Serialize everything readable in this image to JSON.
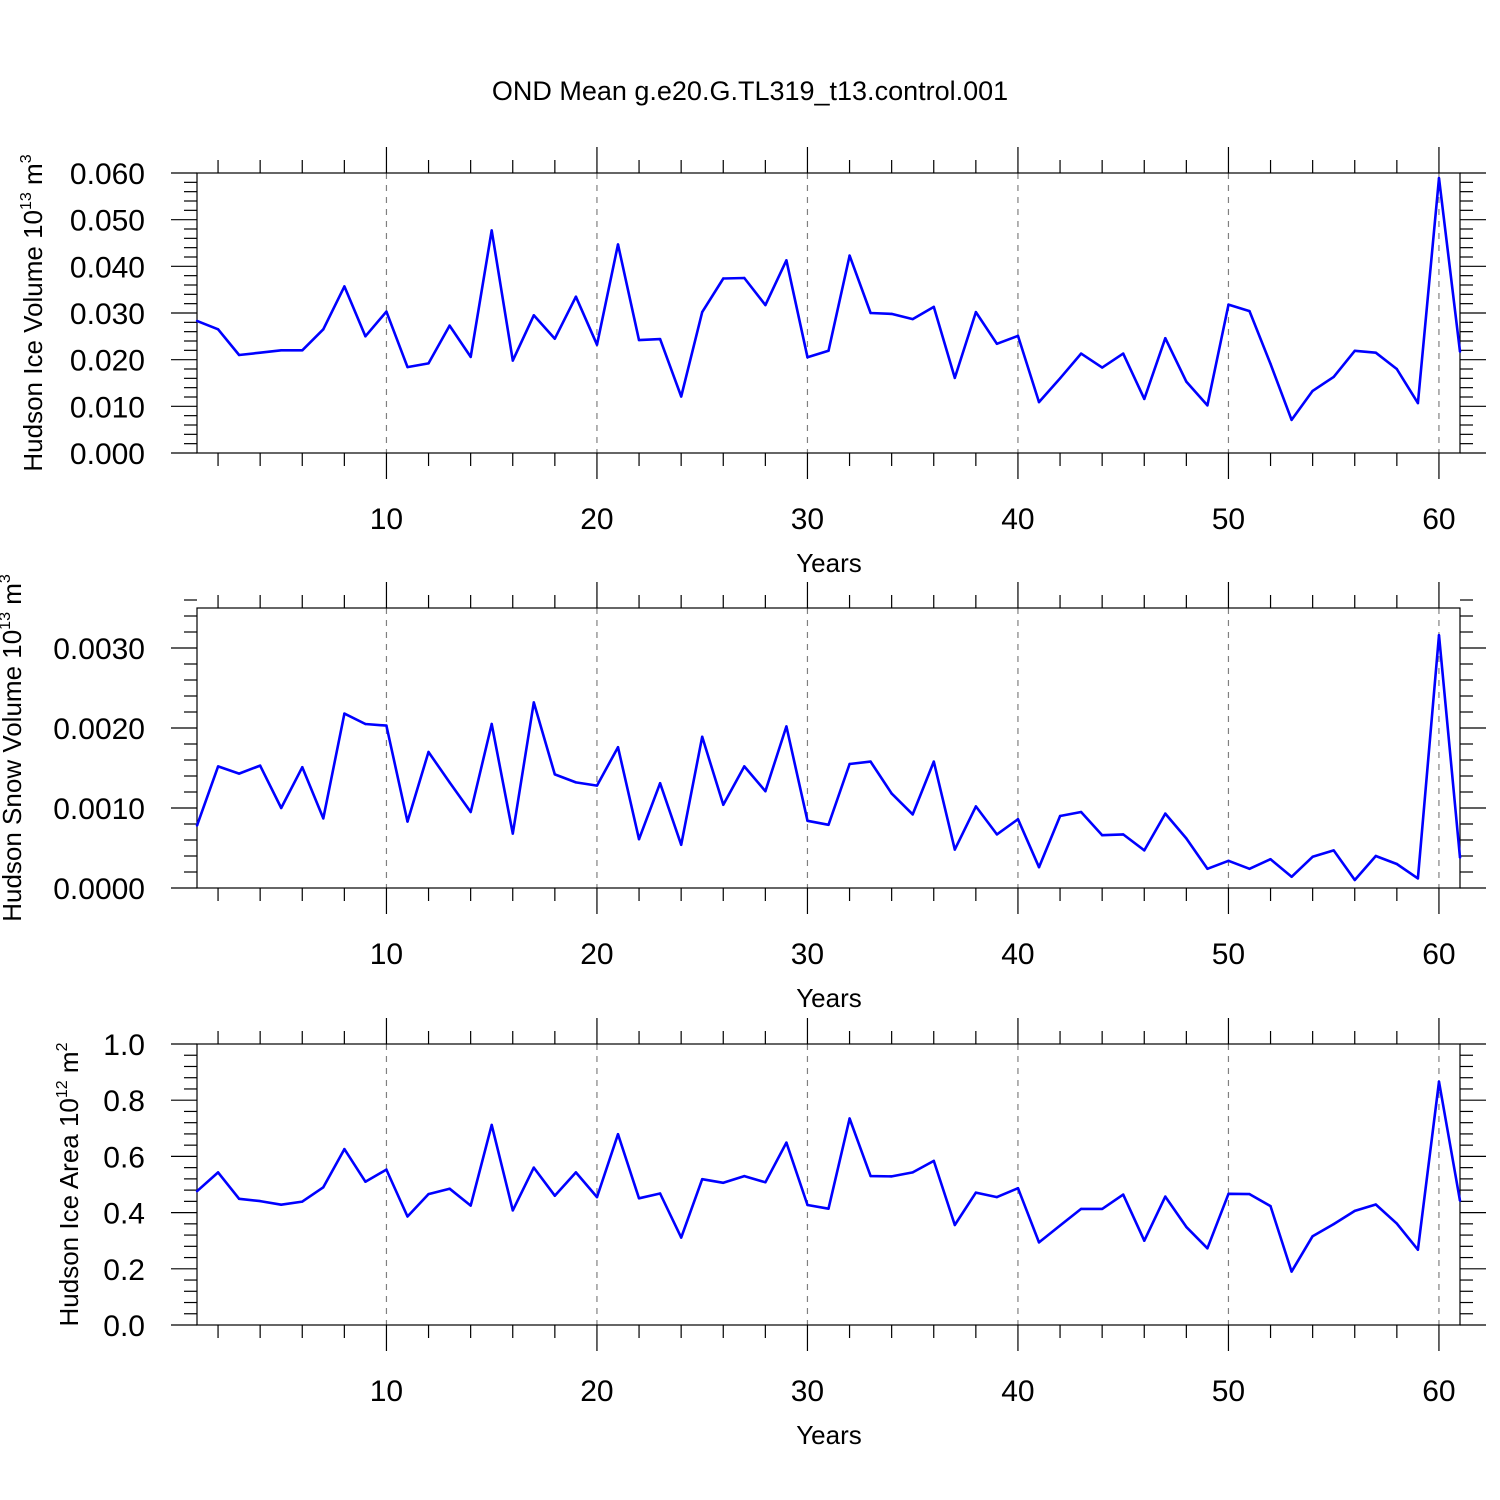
{
  "title": "OND Mean g.e20.G.TL319_t13.control.001",
  "colors": {
    "line": "#0000ff",
    "axis": "#000000",
    "grid": "#808080"
  },
  "chart_data": [
    {
      "type": "line",
      "xlabel": "Years",
      "ylabel": {
        "text": "Hudson Ice Volume 10",
        "exp": "13",
        "unit": " m",
        "unit_exp": "3"
      },
      "xlim": [
        1,
        61
      ],
      "ylim": [
        0,
        0.06
      ],
      "x_ticks": [
        10,
        20,
        30,
        40,
        50,
        60
      ],
      "x_tick_labels": [
        "10",
        "20",
        "30",
        "40",
        "50",
        "60"
      ],
      "y_ticks": [
        0,
        0.01,
        0.02,
        0.03,
        0.04,
        0.05,
        0.06
      ],
      "y_tick_labels": [
        "0.000",
        "0.010",
        "0.020",
        "0.030",
        "0.040",
        "0.050",
        "0.060"
      ],
      "grid": "vertical-dashed",
      "x": [
        1,
        2,
        3,
        4,
        5,
        6,
        7,
        8,
        9,
        10,
        11,
        12,
        13,
        14,
        15,
        16,
        17,
        18,
        19,
        20,
        21,
        22,
        23,
        24,
        25,
        26,
        27,
        28,
        29,
        30,
        31,
        32,
        33,
        34,
        35,
        36,
        37,
        38,
        39,
        40,
        41,
        42,
        43,
        44,
        45,
        46,
        47,
        48,
        49,
        50,
        51,
        52,
        53,
        54,
        55,
        56,
        57,
        58,
        59,
        60,
        61
      ],
      "series": [
        {
          "values": [
            0.0283,
            0.0265,
            0.021,
            0.0215,
            0.022,
            0.022,
            0.0265,
            0.0357,
            0.025,
            0.0303,
            0.0184,
            0.0192,
            0.0273,
            0.0206,
            0.0477,
            0.0198,
            0.0295,
            0.0245,
            0.0335,
            0.0232,
            0.0447,
            0.0242,
            0.0244,
            0.0121,
            0.0302,
            0.0374,
            0.0375,
            0.0317,
            0.0413,
            0.0205,
            0.0219,
            0.0423,
            0.03,
            0.0298,
            0.0287,
            0.0313,
            0.0161,
            0.0302,
            0.0234,
            0.0251,
            0.0109,
            0.016,
            0.0213,
            0.0183,
            0.0213,
            0.0116,
            0.0246,
            0.0153,
            0.0102,
            0.0318,
            0.0304,
            0.0191,
            0.0071,
            0.0133,
            0.0163,
            0.0219,
            0.0215,
            0.018,
            0.0107,
            0.0589,
            0.0217
          ]
        }
      ]
    },
    {
      "type": "line",
      "xlabel": "Years",
      "ylabel": {
        "text": "Hudson Snow Volume 10",
        "exp": "13",
        "unit": " m",
        "unit_exp": "3"
      },
      "xlim": [
        1,
        61
      ],
      "ylim": [
        0,
        0.0035
      ],
      "x_ticks": [
        10,
        20,
        30,
        40,
        50,
        60
      ],
      "x_tick_labels": [
        "10",
        "20",
        "30",
        "40",
        "50",
        "60"
      ],
      "y_ticks": [
        0,
        0.001,
        0.002,
        0.003
      ],
      "y_tick_labels": [
        "0.0000",
        "0.0010",
        "0.0020",
        "0.0030"
      ],
      "grid": "vertical-dashed",
      "x": [
        1,
        2,
        3,
        4,
        5,
        6,
        7,
        8,
        9,
        10,
        11,
        12,
        13,
        14,
        15,
        16,
        17,
        18,
        19,
        20,
        21,
        22,
        23,
        24,
        25,
        26,
        27,
        28,
        29,
        30,
        31,
        32,
        33,
        34,
        35,
        36,
        37,
        38,
        39,
        40,
        41,
        42,
        43,
        44,
        45,
        46,
        47,
        48,
        49,
        50,
        51,
        52,
        53,
        54,
        55,
        56,
        57,
        58,
        59,
        60,
        61
      ],
      "series": [
        {
          "values": [
            0.00078,
            0.00152,
            0.00143,
            0.00153,
            0.001,
            0.00151,
            0.00087,
            0.00218,
            0.00205,
            0.00203,
            0.00083,
            0.0017,
            0.00132,
            0.00095,
            0.00205,
            0.00068,
            0.00232,
            0.00142,
            0.00132,
            0.00128,
            0.00176,
            0.00061,
            0.00131,
            0.00054,
            0.00189,
            0.00104,
            0.00152,
            0.00121,
            0.00202,
            0.00084,
            0.00079,
            0.00155,
            0.00158,
            0.00118,
            0.00092,
            0.00158,
            0.00048,
            0.00102,
            0.00067,
            0.00086,
            0.00026,
            0.0009,
            0.00095,
            0.00066,
            0.00067,
            0.00047,
            0.00093,
            0.00062,
            0.00024,
            0.00034,
            0.00024,
            0.00036,
            0.00014,
            0.00039,
            0.00047,
            0.0001,
            0.0004,
            0.0003,
            0.00012,
            0.00316,
            0.00038
          ]
        }
      ]
    },
    {
      "type": "line",
      "xlabel": "Years",
      "ylabel": {
        "text": "Hudson Ice Area 10",
        "exp": "12",
        "unit": " m",
        "unit_exp": "2"
      },
      "xlim": [
        1,
        61
      ],
      "ylim": [
        0,
        1.0
      ],
      "x_ticks": [
        10,
        20,
        30,
        40,
        50,
        60
      ],
      "x_tick_labels": [
        "10",
        "20",
        "30",
        "40",
        "50",
        "60"
      ],
      "y_ticks": [
        0,
        0.2,
        0.4,
        0.6,
        0.8,
        1.0
      ],
      "y_tick_labels": [
        "0.0",
        "0.2",
        "0.4",
        "0.6",
        "0.8",
        "1.0"
      ],
      "grid": "vertical-dashed",
      "x": [
        1,
        2,
        3,
        4,
        5,
        6,
        7,
        8,
        9,
        10,
        11,
        12,
        13,
        14,
        15,
        16,
        17,
        18,
        19,
        20,
        21,
        22,
        23,
        24,
        25,
        26,
        27,
        28,
        29,
        30,
        31,
        32,
        33,
        34,
        35,
        36,
        37,
        38,
        39,
        40,
        41,
        42,
        43,
        44,
        45,
        46,
        47,
        48,
        49,
        50,
        51,
        52,
        53,
        54,
        55,
        56,
        57,
        58,
        59,
        60,
        61
      ],
      "series": [
        {
          "values": [
            0.476,
            0.543,
            0.449,
            0.441,
            0.428,
            0.439,
            0.49,
            0.626,
            0.51,
            0.553,
            0.386,
            0.466,
            0.485,
            0.425,
            0.712,
            0.408,
            0.56,
            0.46,
            0.543,
            0.455,
            0.679,
            0.451,
            0.468,
            0.311,
            0.519,
            0.506,
            0.53,
            0.508,
            0.649,
            0.427,
            0.414,
            0.735,
            0.53,
            0.529,
            0.543,
            0.584,
            0.356,
            0.471,
            0.455,
            0.487,
            0.294,
            0.354,
            0.413,
            0.413,
            0.464,
            0.3,
            0.457,
            0.349,
            0.273,
            0.467,
            0.466,
            0.423,
            0.19,
            0.316,
            0.359,
            0.406,
            0.429,
            0.361,
            0.268,
            0.866,
            0.442
          ]
        }
      ]
    }
  ]
}
